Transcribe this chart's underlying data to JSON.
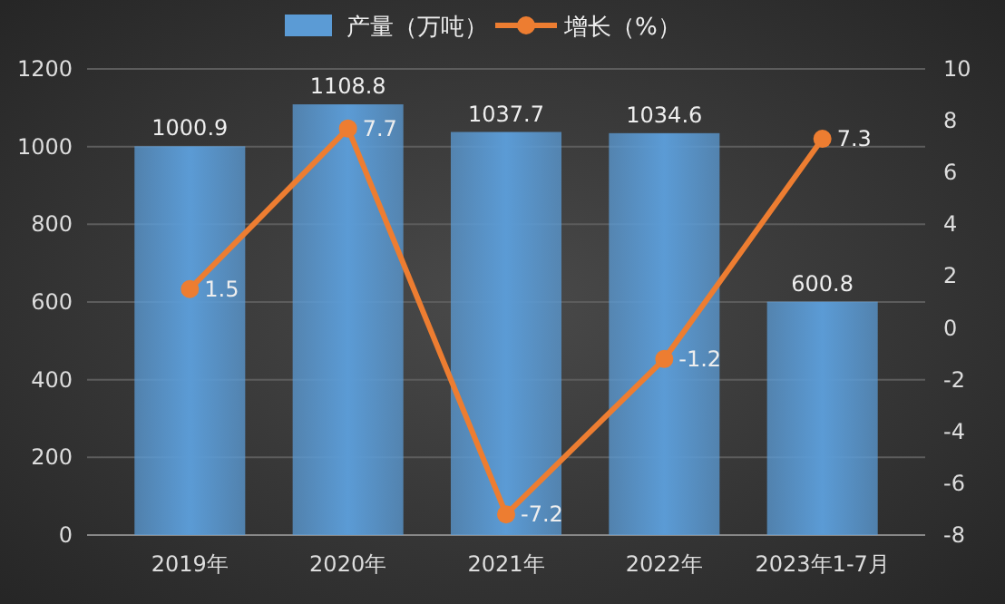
{
  "chart_data": {
    "type": "bar",
    "categories": [
      "2019年",
      "2020年",
      "2021年",
      "2022年",
      "2023年1-7月"
    ],
    "series": [
      {
        "name": "产量（万吨）",
        "color": "#5b9bd5",
        "values": [
          1000.9,
          1108.8,
          1037.7,
          1034.6,
          600.8
        ]
      },
      {
        "name": "增长（%）",
        "type": "line",
        "axis": "y2",
        "color": "#ed7d31",
        "values": [
          1.5,
          7.7,
          -7.2,
          -1.2,
          7.3
        ]
      }
    ],
    "ylim": [
      0,
      1200
    ],
    "yticks": [
      0,
      200,
      400,
      600,
      800,
      1000,
      1200
    ],
    "y2lim": [
      -8,
      10
    ],
    "y2ticks": [
      -8,
      -6,
      -4,
      -2,
      0,
      2,
      4,
      6,
      8,
      10
    ],
    "grid": "y",
    "legend": "top",
    "marker": "circle",
    "line_style": "solid",
    "data_labels": true
  }
}
